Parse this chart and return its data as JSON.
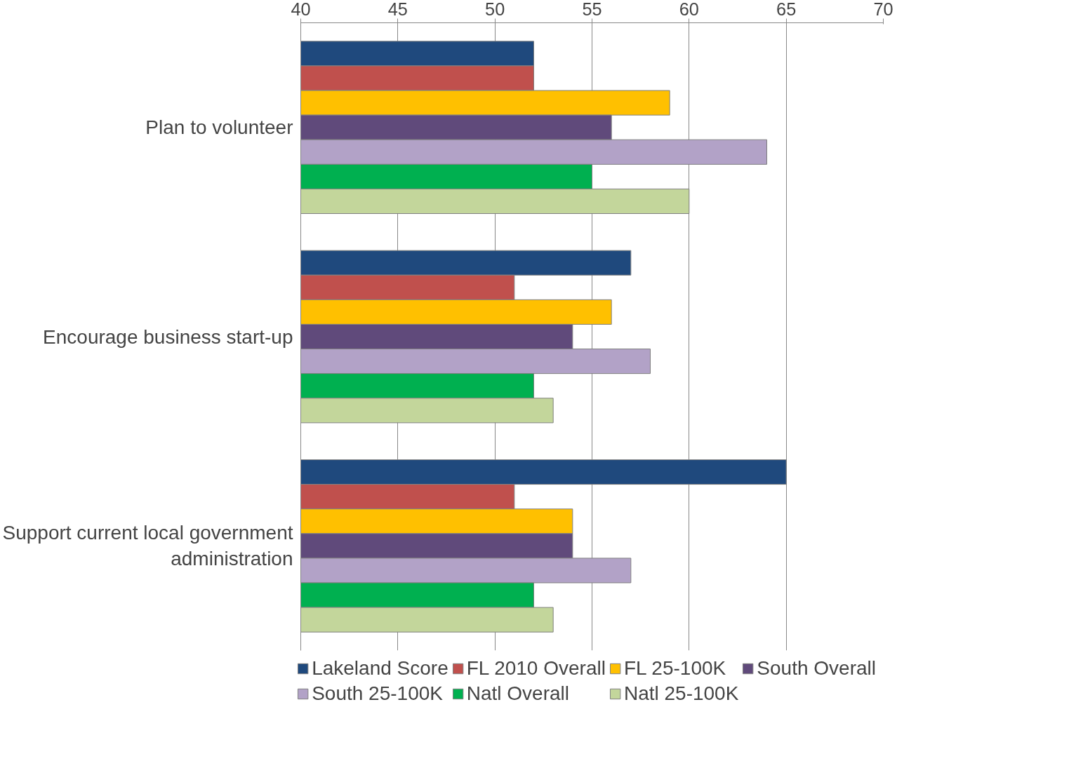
{
  "chart_data": {
    "type": "bar",
    "orientation": "horizontal",
    "categories": [
      "Plan to volunteer",
      "Encourage business start-up",
      "Support current local government administration"
    ],
    "series": [
      {
        "name": "Lakeland Score",
        "color": "#1f497d",
        "values": [
          52,
          57,
          65
        ]
      },
      {
        "name": "FL 2010 Overall",
        "color": "#c0504d",
        "values": [
          52,
          51,
          51
        ]
      },
      {
        "name": "FL 25-100K",
        "color": "#ffc000",
        "values": [
          59,
          56,
          54
        ]
      },
      {
        "name": "South Overall",
        "color": "#604a7b",
        "values": [
          56,
          54,
          54
        ]
      },
      {
        "name": "South 25-100K",
        "color": "#b2a2c7",
        "values": [
          64,
          58,
          57
        ]
      },
      {
        "name": "Natl Overall",
        "color": "#00b050",
        "values": [
          55,
          52,
          52
        ]
      },
      {
        "name": "Natl 25-100K",
        "color": "#c3d69b",
        "values": [
          60,
          53,
          53
        ]
      }
    ],
    "xlim": [
      40,
      70
    ],
    "xticks": [
      40,
      45,
      50,
      55,
      60,
      65,
      70
    ],
    "grid": "x",
    "legend": "bottom"
  }
}
